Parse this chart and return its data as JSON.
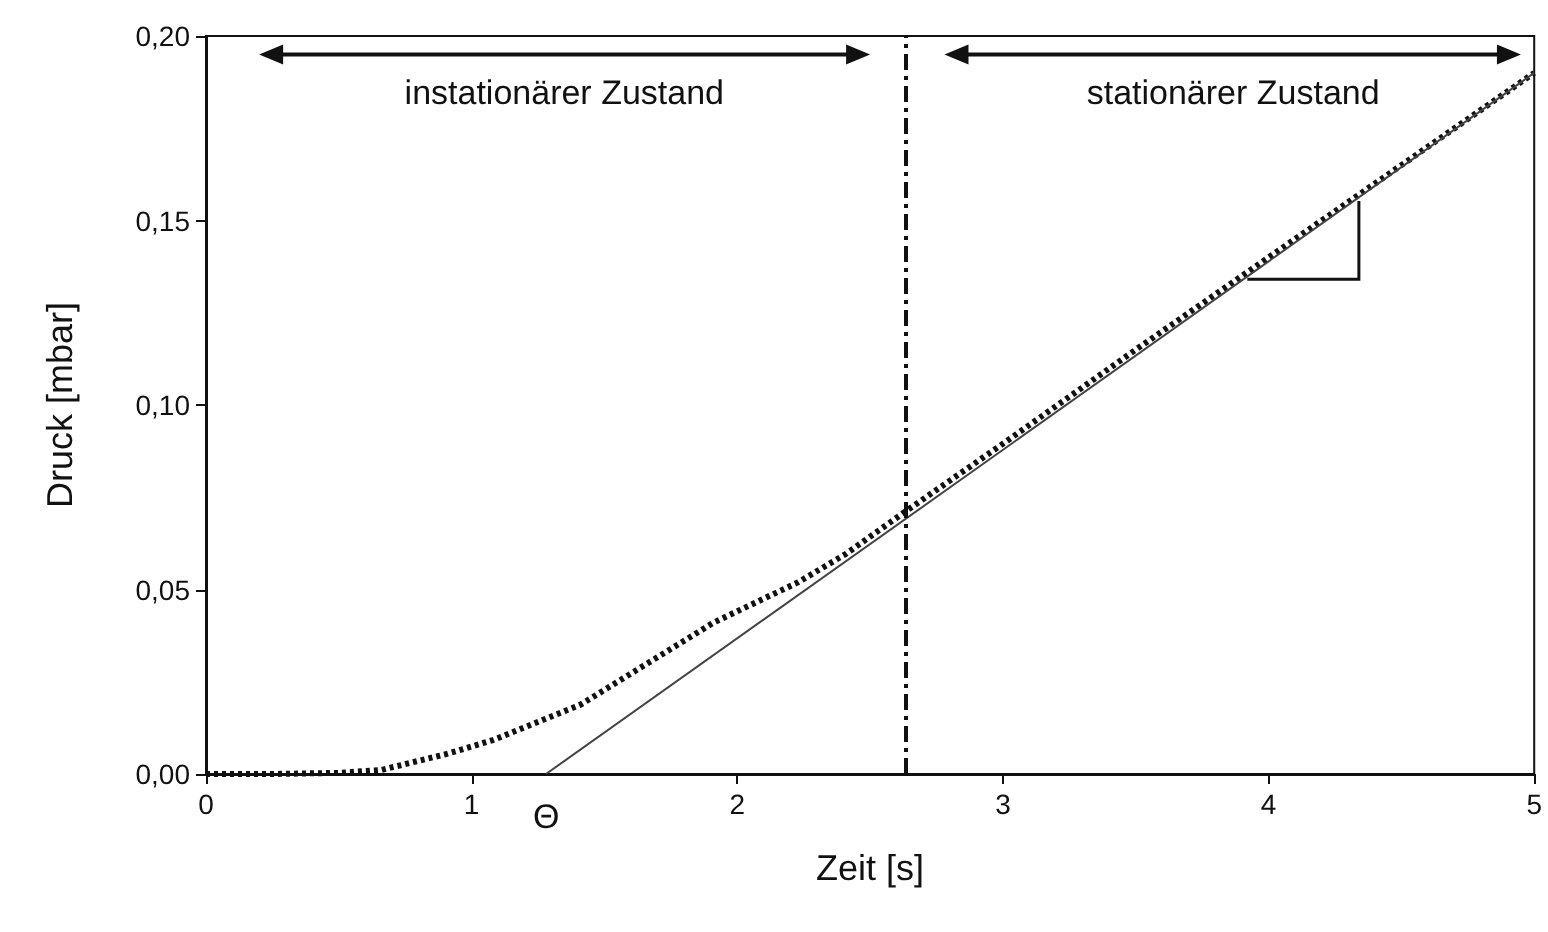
{
  "chart_data": {
    "type": "line",
    "xlabel": "Zeit [s]",
    "ylabel": "Druck [mbar]",
    "xlim": [
      0,
      5
    ],
    "xticks": [
      0,
      1,
      2,
      3,
      4,
      5
    ],
    "ylim": [
      0,
      0.2
    ],
    "yticks": [
      {
        "value": 0,
        "label": "0,00"
      },
      {
        "value": 0.05,
        "label": "0,05"
      },
      {
        "value": 0.1,
        "label": "0,10"
      },
      {
        "value": 0.15,
        "label": "0,15"
      },
      {
        "value": 0.2,
        "label": "0,20"
      }
    ],
    "series": [
      {
        "color": "#111111",
        "line_style": "dotted",
        "marker": "none",
        "x": [
          0,
          0.25,
          0.5,
          0.66,
          0.91,
          1.08,
          1.41,
          1.91,
          2.23,
          2.41,
          2.63,
          3,
          3.5,
          4,
          4.5,
          5
        ],
        "values": [
          0,
          0,
          0.0003,
          0.0011,
          0.0055,
          0.0092,
          0.0188,
          0.041,
          0.052,
          0.0597,
          0.071,
          0.0895,
          0.115,
          0.14,
          0.165,
          0.19
        ]
      },
      {
        "color": "#444444",
        "line_style": "solid",
        "marker": "none",
        "x": [
          1.28,
          5
        ],
        "values": [
          0,
          0.19
        ]
      }
    ],
    "ref_lines": [
      {
        "axis": "x",
        "value": 2.63,
        "color": "#111111",
        "line_style": "dashdot"
      }
    ],
    "annotations": [
      "instationärer Zustand",
      "stationärer Zustand",
      {
        "text": "Θ",
        "x": 1.28,
        "y": 0
      }
    ]
  }
}
